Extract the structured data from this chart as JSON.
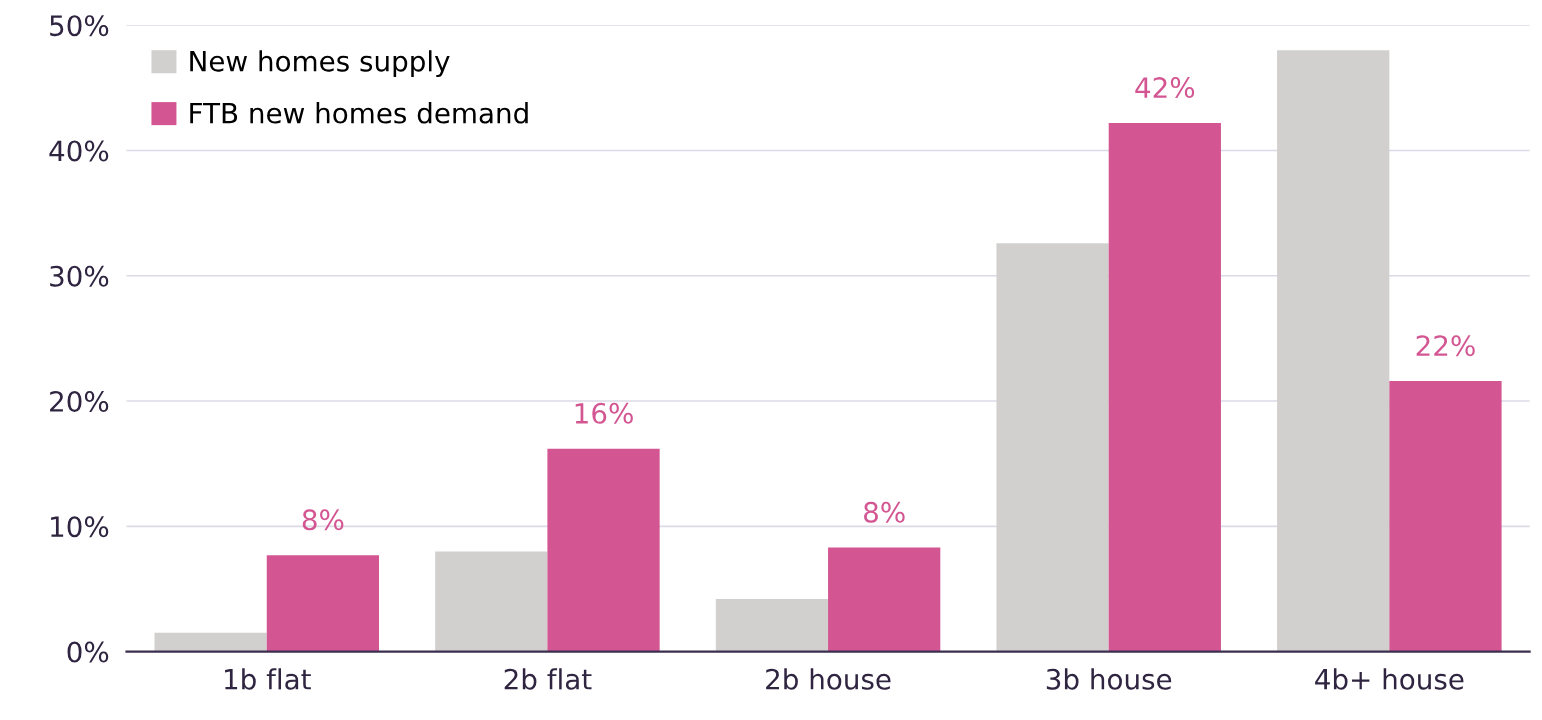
{
  "chart_data": {
    "type": "bar",
    "categories": [
      "1b flat",
      "2b flat",
      "2b house",
      "3b house",
      "4b+ house"
    ],
    "series": [
      {
        "name": "New homes supply",
        "color": "#d1d0ce",
        "values": [
          1.5,
          8.0,
          4.2,
          32.6,
          48.0
        ]
      },
      {
        "name": "FTB new homes demand",
        "color": "#d35692",
        "values": [
          7.7,
          16.2,
          8.3,
          42.2,
          21.6
        ],
        "value_labels": [
          "8%",
          "16%",
          "8%",
          "42%",
          "22%"
        ]
      }
    ],
    "ylim": [
      0,
      50
    ],
    "yticks": [
      {
        "value": 0,
        "label": "0%"
      },
      {
        "value": 10,
        "label": "10%"
      },
      {
        "value": 20,
        "label": "20%"
      },
      {
        "value": 30,
        "label": "30%"
      },
      {
        "value": 40,
        "label": "40%"
      },
      {
        "value": 50,
        "label": "50%"
      }
    ],
    "grid": "y",
    "legend": "top left"
  }
}
